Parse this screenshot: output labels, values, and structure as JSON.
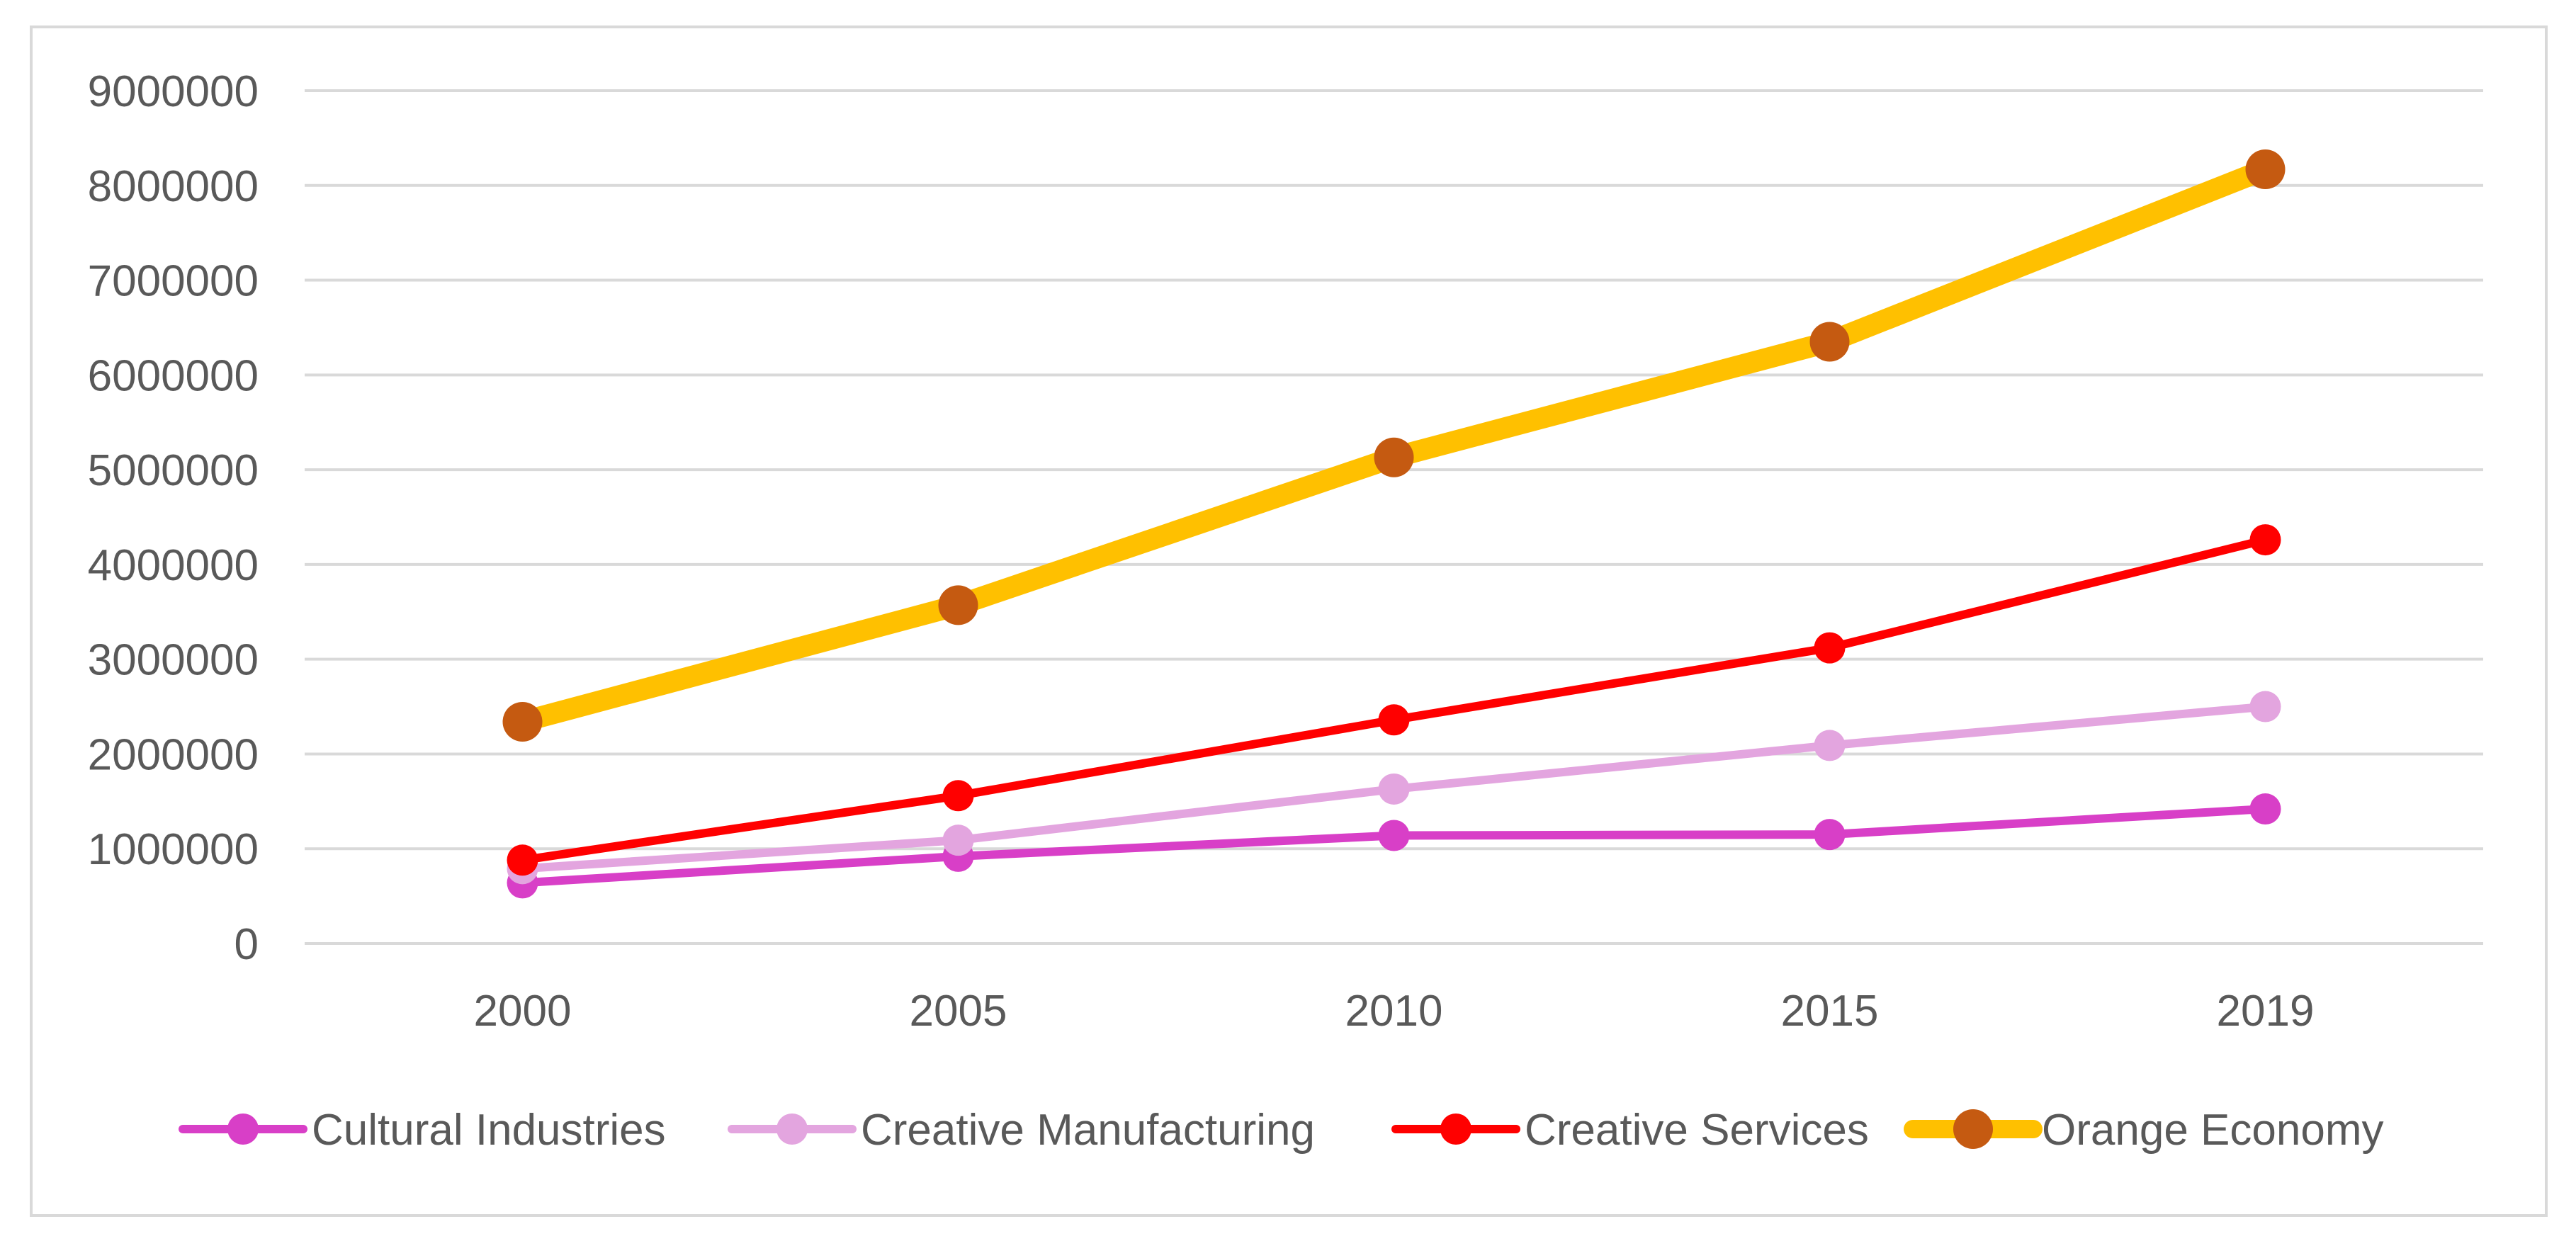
{
  "chart_data": {
    "type": "line",
    "title": "",
    "xlabel": "",
    "ylabel": "",
    "categories": [
      "2000",
      "2005",
      "2010",
      "2015",
      "2019"
    ],
    "ylim": [
      0,
      9000000
    ],
    "yticks": [
      "0",
      "1000000",
      "2000000",
      "3000000",
      "4000000",
      "5000000",
      "6000000",
      "7000000",
      "8000000",
      "9000000"
    ],
    "grid": true,
    "legend_position": "bottom",
    "series": [
      {
        "name": "Cultural Industries",
        "values": [
          640000,
          920000,
          1140000,
          1150000,
          1420000
        ],
        "color": "#d83fc7",
        "marker_color": "#d83fc7"
      },
      {
        "name": "Creative Manufacturing",
        "values": [
          790000,
          1090000,
          1630000,
          2090000,
          2500000
        ],
        "color": "#e3a5df",
        "marker_color": "#e3a5df"
      },
      {
        "name": "Creative Services",
        "values": [
          880000,
          1560000,
          2360000,
          3120000,
          4260000
        ],
        "color": "#ff0000",
        "marker_color": "#ff0000"
      },
      {
        "name": "Orange Economy",
        "values": [
          2340000,
          3570000,
          5130000,
          6350000,
          8170000
        ],
        "color": "#ffc000",
        "marker_color": "#c55a11"
      }
    ]
  }
}
